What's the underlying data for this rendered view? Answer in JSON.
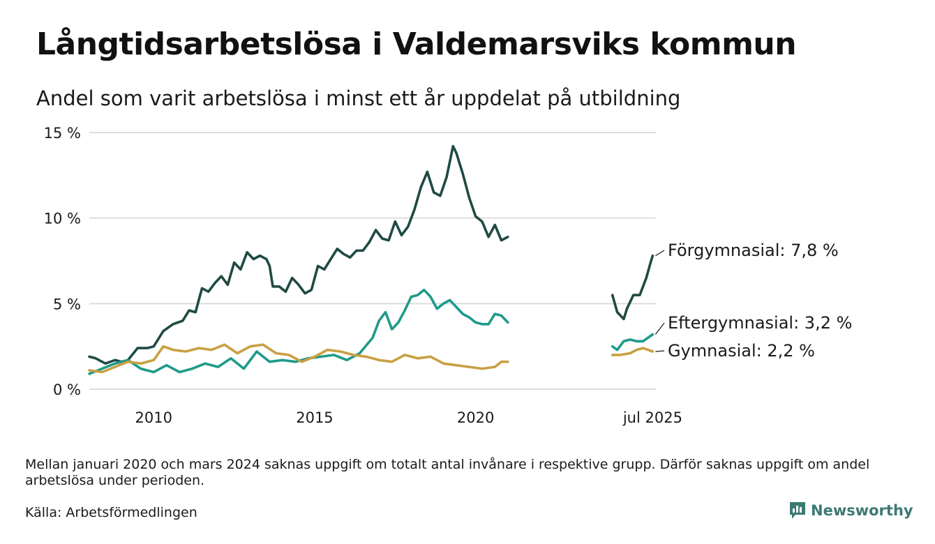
{
  "title": "Långtidsarbetslösa i Valdemarsviks kommun",
  "subtitle": "Andel som varit arbetslösa i minst ett år uppdelat på utbildning",
  "note": "Mellan januari 2020 och mars 2024 saknas uppgift om totalt antal invånare i respektive grupp. Därför saknas uppgift om andel arbetslösa under perioden.",
  "source": "Källa: Arbetsförmedlingen",
  "brand": {
    "name": "Newsworthy",
    "icon": "bar-chart-speech-bubble-icon",
    "color": "#3d7a73"
  },
  "chart_data": {
    "type": "line",
    "y_ticks": [
      {
        "value": 0,
        "label": "0 %"
      },
      {
        "value": 5,
        "label": "5 %"
      },
      {
        "value": 10,
        "label": "10 %"
      },
      {
        "value": 15,
        "label": "15 %"
      }
    ],
    "x_ticks": [
      {
        "value": 2010,
        "label": "2010"
      },
      {
        "value": 2015,
        "label": "2015"
      },
      {
        "value": 2020,
        "label": "2020"
      },
      {
        "value": 2025.5,
        "label": "jul 2025"
      }
    ],
    "xlim": [
      2008.0,
      2025.6
    ],
    "ylim": [
      0,
      15
    ],
    "grid": true,
    "series": [
      {
        "name": "Förgymnasial",
        "label": "Förgymnasial: 7,8 %",
        "color": "#1f4a44",
        "segments": [
          [
            [
              2008.0,
              1.9
            ],
            [
              2008.2,
              1.8
            ],
            [
              2008.5,
              1.5
            ],
            [
              2008.8,
              1.7
            ],
            [
              2009.0,
              1.6
            ],
            [
              2009.2,
              1.7
            ],
            [
              2009.5,
              2.4
            ],
            [
              2009.8,
              2.4
            ],
            [
              2010.0,
              2.5
            ],
            [
              2010.3,
              3.4
            ],
            [
              2010.6,
              3.8
            ],
            [
              2010.9,
              4.0
            ],
            [
              2011.1,
              4.6
            ],
            [
              2011.3,
              4.5
            ],
            [
              2011.5,
              5.9
            ],
            [
              2011.7,
              5.7
            ],
            [
              2011.9,
              6.2
            ],
            [
              2012.1,
              6.6
            ],
            [
              2012.3,
              6.1
            ],
            [
              2012.5,
              7.4
            ],
            [
              2012.7,
              7.0
            ],
            [
              2012.9,
              8.0
            ],
            [
              2013.1,
              7.6
            ],
            [
              2013.3,
              7.8
            ],
            [
              2013.5,
              7.6
            ],
            [
              2013.6,
              7.2
            ],
            [
              2013.7,
              6.0
            ],
            [
              2013.9,
              6.0
            ],
            [
              2014.1,
              5.7
            ],
            [
              2014.3,
              6.5
            ],
            [
              2014.5,
              6.1
            ],
            [
              2014.7,
              5.6
            ],
            [
              2014.9,
              5.8
            ],
            [
              2015.1,
              7.2
            ],
            [
              2015.3,
              7.0
            ],
            [
              2015.5,
              7.6
            ],
            [
              2015.7,
              8.2
            ],
            [
              2015.9,
              7.9
            ],
            [
              2016.1,
              7.7
            ],
            [
              2016.3,
              8.1
            ],
            [
              2016.5,
              8.1
            ],
            [
              2016.7,
              8.6
            ],
            [
              2016.9,
              9.3
            ],
            [
              2017.1,
              8.8
            ],
            [
              2017.3,
              8.7
            ],
            [
              2017.5,
              9.8
            ],
            [
              2017.7,
              9.0
            ],
            [
              2017.9,
              9.5
            ],
            [
              2018.1,
              10.5
            ],
            [
              2018.3,
              11.8
            ],
            [
              2018.5,
              12.7
            ],
            [
              2018.7,
              11.5
            ],
            [
              2018.9,
              11.3
            ],
            [
              2019.1,
              12.4
            ],
            [
              2019.3,
              14.2
            ],
            [
              2019.4,
              13.8
            ],
            [
              2019.6,
              12.6
            ],
            [
              2019.8,
              11.2
            ],
            [
              2020.0,
              10.1
            ],
            [
              2020.2,
              9.8
            ],
            [
              2020.4,
              8.9
            ],
            [
              2020.6,
              9.6
            ],
            [
              2020.8,
              8.7
            ],
            [
              2021.0,
              8.9
            ]
          ],
          [
            [
              2024.25,
              5.5
            ],
            [
              2024.4,
              4.5
            ],
            [
              2024.6,
              4.1
            ],
            [
              2024.7,
              4.7
            ],
            [
              2024.9,
              5.5
            ],
            [
              2025.1,
              5.5
            ],
            [
              2025.3,
              6.5
            ],
            [
              2025.45,
              7.5
            ],
            [
              2025.5,
              7.8
            ]
          ]
        ]
      },
      {
        "name": "Eftergymnasial",
        "label": "Eftergymnasial: 3,2 %",
        "color": "#1f9a89",
        "segments": [
          [
            [
              2008.0,
              0.9
            ],
            [
              2008.4,
              1.2
            ],
            [
              2008.8,
              1.5
            ],
            [
              2009.2,
              1.7
            ],
            [
              2009.6,
              1.2
            ],
            [
              2010.0,
              1.0
            ],
            [
              2010.4,
              1.4
            ],
            [
              2010.8,
              1.0
            ],
            [
              2011.2,
              1.2
            ],
            [
              2011.6,
              1.5
            ],
            [
              2012.0,
              1.3
            ],
            [
              2012.4,
              1.8
            ],
            [
              2012.8,
              1.2
            ],
            [
              2013.2,
              2.2
            ],
            [
              2013.6,
              1.6
            ],
            [
              2014.0,
              1.7
            ],
            [
              2014.4,
              1.6
            ],
            [
              2014.8,
              1.8
            ],
            [
              2015.2,
              1.9
            ],
            [
              2015.6,
              2.0
            ],
            [
              2016.0,
              1.7
            ],
            [
              2016.4,
              2.1
            ],
            [
              2016.8,
              3.0
            ],
            [
              2017.0,
              4.0
            ],
            [
              2017.2,
              4.5
            ],
            [
              2017.4,
              3.5
            ],
            [
              2017.6,
              3.9
            ],
            [
              2017.8,
              4.6
            ],
            [
              2018.0,
              5.4
            ],
            [
              2018.2,
              5.5
            ],
            [
              2018.4,
              5.8
            ],
            [
              2018.6,
              5.4
            ],
            [
              2018.8,
              4.7
            ],
            [
              2019.0,
              5.0
            ],
            [
              2019.2,
              5.2
            ],
            [
              2019.4,
              4.8
            ],
            [
              2019.6,
              4.4
            ],
            [
              2019.8,
              4.2
            ],
            [
              2020.0,
              3.9
            ],
            [
              2020.2,
              3.8
            ],
            [
              2020.4,
              3.8
            ],
            [
              2020.6,
              4.4
            ],
            [
              2020.8,
              4.3
            ],
            [
              2021.0,
              3.9
            ]
          ],
          [
            [
              2024.25,
              2.5
            ],
            [
              2024.4,
              2.3
            ],
            [
              2024.6,
              2.8
            ],
            [
              2024.8,
              2.9
            ],
            [
              2025.0,
              2.8
            ],
            [
              2025.2,
              2.8
            ],
            [
              2025.35,
              3.0
            ],
            [
              2025.5,
              3.2
            ]
          ]
        ]
      },
      {
        "name": "Gymnasial",
        "label": "Gymnasial: 2,2 %",
        "color": "#c9a042",
        "segments": [
          [
            [
              2008.0,
              1.1
            ],
            [
              2008.4,
              1.0
            ],
            [
              2008.8,
              1.3
            ],
            [
              2009.2,
              1.6
            ],
            [
              2009.6,
              1.5
            ],
            [
              2010.0,
              1.7
            ],
            [
              2010.3,
              2.5
            ],
            [
              2010.6,
              2.3
            ],
            [
              2011.0,
              2.2
            ],
            [
              2011.4,
              2.4
            ],
            [
              2011.8,
              2.3
            ],
            [
              2012.2,
              2.6
            ],
            [
              2012.6,
              2.1
            ],
            [
              2013.0,
              2.5
            ],
            [
              2013.4,
              2.6
            ],
            [
              2013.8,
              2.1
            ],
            [
              2014.2,
              2.0
            ],
            [
              2014.6,
              1.6
            ],
            [
              2015.0,
              1.9
            ],
            [
              2015.4,
              2.3
            ],
            [
              2015.8,
              2.2
            ],
            [
              2016.2,
              2.0
            ],
            [
              2016.6,
              1.9
            ],
            [
              2017.0,
              1.7
            ],
            [
              2017.4,
              1.6
            ],
            [
              2017.8,
              2.0
            ],
            [
              2018.2,
              1.8
            ],
            [
              2018.6,
              1.9
            ],
            [
              2019.0,
              1.5
            ],
            [
              2019.4,
              1.4
            ],
            [
              2019.8,
              1.3
            ],
            [
              2020.2,
              1.2
            ],
            [
              2020.6,
              1.3
            ],
            [
              2020.8,
              1.6
            ],
            [
              2021.0,
              1.6
            ]
          ],
          [
            [
              2024.25,
              2.0
            ],
            [
              2024.5,
              2.0
            ],
            [
              2024.8,
              2.1
            ],
            [
              2025.0,
              2.3
            ],
            [
              2025.2,
              2.4
            ],
            [
              2025.35,
              2.3
            ],
            [
              2025.5,
              2.2
            ]
          ]
        ]
      }
    ]
  }
}
